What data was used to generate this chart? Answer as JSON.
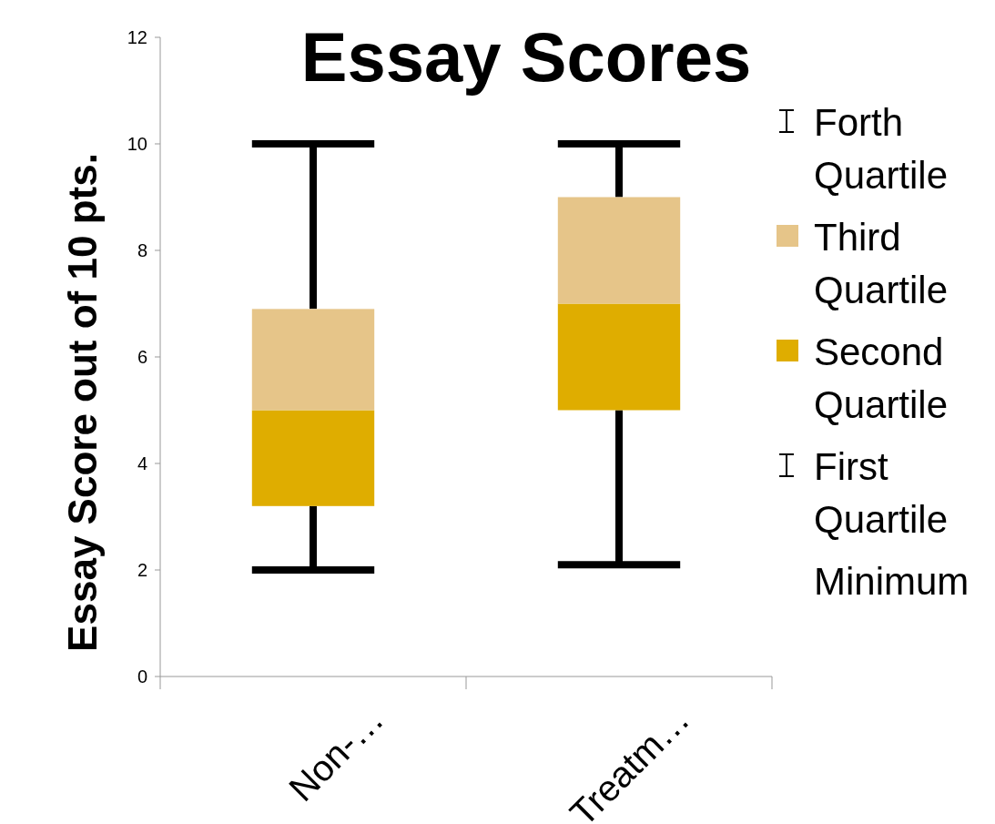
{
  "chart_data": {
    "type": "box",
    "title": "Essay Scores",
    "ylabel": "Essay Score out of 10 pts.",
    "categories": [
      "Non-…",
      "Treatm…"
    ],
    "boxes": [
      {
        "low": 2,
        "q1": 3.2,
        "median": 5,
        "q3": 6.9,
        "high": 10
      },
      {
        "low": 2.1,
        "q1": 5,
        "median": 7,
        "q3": 9,
        "high": 10
      }
    ],
    "colors": [
      [
        "#dfad00",
        "#e6c589"
      ],
      [
        "#dfad00",
        "#e6c589"
      ]
    ],
    "annotations": [
      "Forth Quartile",
      "Third Quartile",
      "Second Quartile",
      "First Quartile",
      "Minimum"
    ],
    "ylim": [
      0,
      12
    ],
    "yticks": [
      0,
      2,
      4,
      6,
      8,
      10,
      12
    ],
    "grid": false
  }
}
